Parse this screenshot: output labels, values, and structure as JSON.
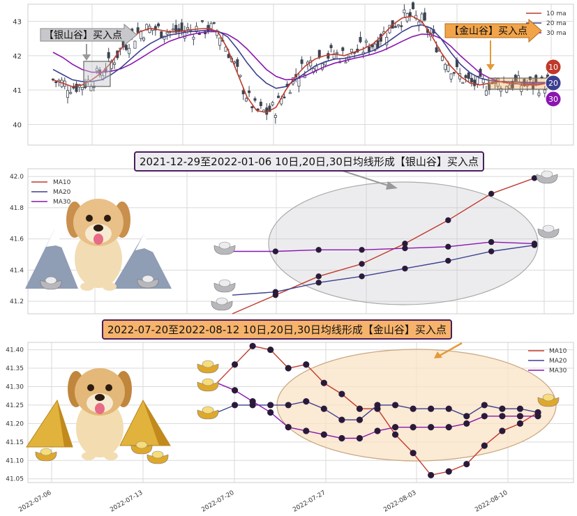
{
  "colors": {
    "ma10": "#c0392b",
    "ma20": "#3b3f8f",
    "ma30": "#8a15b0",
    "grid": "#d9d9d9",
    "silver_fill": "#e4e4e4",
    "gold_fill": "#f9e3c6",
    "up_candle": "#ffffff",
    "down_candle": "#3d4552",
    "silver_label_bg": "#c8c8cc",
    "gold_label_bg": "#f2a44a"
  },
  "icons": [
    "dog-illustration",
    "silver-ingot-icon",
    "gold-ingot-icon",
    "gold-pyramid-icon",
    "snowy-mountain-icon",
    "arrow-icon"
  ],
  "panel1": {
    "chart_data": {
      "type": "candlestick",
      "yticks": [
        "43",
        "42",
        "41",
        "40"
      ],
      "ylim": [
        39.4,
        43.5
      ],
      "legend": [
        "10 ma",
        "20 ma",
        "30 ma"
      ],
      "legend_position": "top-right",
      "badges": [
        "10",
        "20",
        "30"
      ],
      "silver_label": "【银山谷】买入点",
      "gold_label": "【金山谷】买入点",
      "ma10": [
        41.3,
        41.2,
        41.1,
        41.15,
        41.3,
        41.5,
        41.8,
        42.2,
        42.5,
        42.7,
        42.8,
        42.75,
        42.7,
        42.7,
        42.75,
        42.78,
        42.8,
        42.7,
        42.2,
        41.5,
        40.8,
        40.4,
        40.35,
        40.5,
        41.0,
        41.4,
        41.7,
        41.9,
        42.0,
        42.05,
        42.0,
        42.1,
        42.2,
        42.35,
        42.6,
        42.9,
        43.1,
        43.15,
        43.0,
        42.6,
        42.1,
        41.7,
        41.4,
        41.2,
        41.15,
        41.2,
        41.25,
        41.2,
        41.18,
        41.15,
        41.15,
        41.2
      ],
      "ma20": [
        41.6,
        41.45,
        41.3,
        41.25,
        41.25,
        41.3,
        41.45,
        41.65,
        41.9,
        42.15,
        42.35,
        42.5,
        42.6,
        42.65,
        42.7,
        42.72,
        42.75,
        42.72,
        42.55,
        42.2,
        41.8,
        41.45,
        41.2,
        41.05,
        41.1,
        41.3,
        41.5,
        41.7,
        41.82,
        41.9,
        41.92,
        41.98,
        42.05,
        42.15,
        42.3,
        42.5,
        42.7,
        42.85,
        42.9,
        42.8,
        42.5,
        42.1,
        41.75,
        41.5,
        41.35,
        41.28,
        41.25,
        41.24,
        41.23,
        41.22,
        41.22,
        41.22
      ],
      "ma30": [
        42.1,
        41.95,
        41.75,
        41.6,
        41.52,
        41.52,
        41.55,
        41.62,
        41.75,
        41.92,
        42.1,
        42.27,
        42.42,
        42.52,
        42.6,
        42.66,
        42.7,
        42.7,
        42.62,
        42.45,
        42.2,
        41.9,
        41.6,
        41.4,
        41.3,
        41.32,
        41.42,
        41.55,
        41.68,
        41.78,
        41.85,
        41.92,
        41.98,
        42.05,
        42.15,
        42.28,
        42.42,
        42.55,
        42.63,
        42.62,
        42.5,
        42.28,
        42.0,
        41.75,
        41.5,
        41.35,
        41.25,
        41.2,
        41.18,
        41.18,
        41.18,
        41.2
      ]
    }
  },
  "panel2": {
    "title": "2021-12-29至2022-01-06 10日,20日,30日均线形成【银山谷】买入点",
    "chart_data": {
      "type": "line",
      "yticks": [
        "42.0",
        "41.8",
        "41.6",
        "41.4",
        "41.2"
      ],
      "ylim": [
        41.12,
        42.05
      ],
      "legend_position": "top-left",
      "series": [
        {
          "name": "MA10",
          "values": [
            41.12,
            41.24,
            41.36,
            41.44,
            41.57,
            41.72,
            41.89,
            41.99
          ]
        },
        {
          "name": "MA20",
          "values": [
            41.24,
            41.26,
            41.32,
            41.36,
            41.41,
            41.46,
            41.52,
            41.56
          ]
        },
        {
          "name": "MA30",
          "values": [
            41.52,
            41.52,
            41.53,
            41.53,
            41.54,
            41.55,
            41.58,
            41.57
          ]
        }
      ]
    }
  },
  "panel3": {
    "title": "2022-07-20至2022-08-12 10日,20日,30日均线形成【金山谷】买入点",
    "chart_data": {
      "type": "line",
      "yticks": [
        "41.40",
        "41.35",
        "41.30",
        "41.25",
        "41.20",
        "41.15",
        "41.10",
        "41.05"
      ],
      "ylim": [
        41.04,
        41.42
      ],
      "xticks": [
        "2022-07-06",
        "2022-07-13",
        "2022-07-20",
        "2022-07-27",
        "2022-08-03",
        "2022-08-10"
      ],
      "legend_position": "top-right",
      "series": [
        {
          "name": "MA10",
          "values": [
            41.31,
            41.36,
            41.41,
            41.4,
            41.35,
            41.36,
            41.31,
            41.28,
            41.24,
            41.24,
            41.17,
            41.12,
            41.06,
            41.07,
            41.09,
            41.14,
            41.18,
            41.2,
            41.23
          ]
        },
        {
          "name": "MA20",
          "values": [
            41.23,
            41.25,
            41.25,
            41.25,
            41.25,
            41.26,
            41.24,
            41.21,
            41.21,
            41.25,
            41.25,
            41.24,
            41.24,
            41.24,
            41.22,
            41.25,
            41.24,
            41.24,
            41.23
          ]
        },
        {
          "name": "MA30",
          "values": [
            41.31,
            41.29,
            41.26,
            41.23,
            41.19,
            41.18,
            41.17,
            41.16,
            41.16,
            41.18,
            41.19,
            41.19,
            41.19,
            41.19,
            41.2,
            41.22,
            41.22,
            41.22,
            41.22
          ]
        }
      ]
    }
  }
}
